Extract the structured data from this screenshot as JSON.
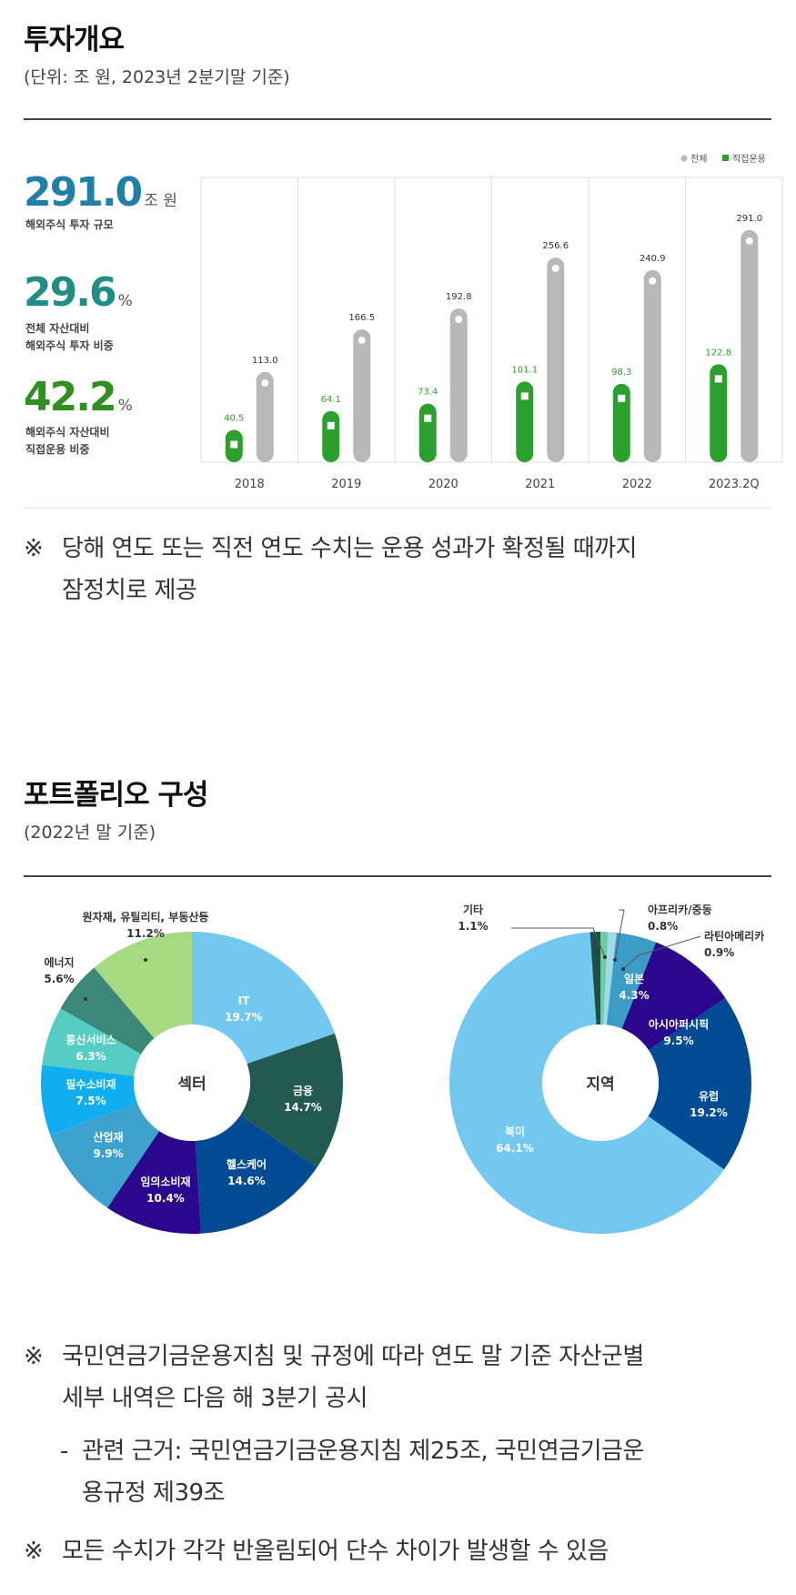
{
  "overview": {
    "title": "투자개요",
    "subtitle": "(단위: 조 원, 2023년 2분기말 기준)",
    "kpis": [
      {
        "value": "291.0",
        "unit": "조 원",
        "label_lines": [
          "해외주식 투자 규모"
        ],
        "color": "#1f7fa8"
      },
      {
        "value": "29.6",
        "unit": "%",
        "label_lines": [
          "전체 자산대비",
          "해외주식 투자 비중"
        ],
        "color": "#1f8f86"
      },
      {
        "value": "42.2",
        "unit": "%",
        "label_lines": [
          "해외주식 자산대비",
          "직접운용 비중"
        ],
        "color": "#2f8f1f"
      }
    ],
    "note": [
      "당해 연도 또는 직전 연도 수치는 운용 성과가 확정될 때까지",
      "잠정치로 제공"
    ],
    "note_mark": "※"
  },
  "chart_data": [
    {
      "type": "bar",
      "categories": [
        "2018",
        "2019",
        "2020",
        "2021",
        "2022",
        "2023.2Q"
      ],
      "series": [
        {
          "name": "전체",
          "values": [
            113.0,
            166.5,
            192.8,
            256.6,
            240.9,
            291.0
          ],
          "color": "#b8b8b8"
        },
        {
          "name": "직접운용",
          "values": [
            40.5,
            64.1,
            73.4,
            101.1,
            98.3,
            122.8
          ],
          "color": "#2ca02c"
        }
      ],
      "legend_order": [
        "전체",
        "직접운용"
      ],
      "legend_position": "top-right",
      "ylim": [
        0,
        300
      ],
      "grid": "vertical"
    },
    {
      "type": "pie",
      "center_label": "섹터",
      "slices": [
        {
          "label": "IT",
          "value": 19.7,
          "color": "#73c8ef",
          "text_color": "#ffffff"
        },
        {
          "label": "금융",
          "value": 14.7,
          "color": "#225a52",
          "text_color": "#ffffff"
        },
        {
          "label": "헬스케어",
          "value": 14.6,
          "color": "#004b93",
          "text_color": "#ffffff"
        },
        {
          "label": "임의소비재",
          "value": 10.4,
          "color": "#2a078c",
          "text_color": "#ffffff"
        },
        {
          "label": "산업재",
          "value": 9.9,
          "color": "#3ea2cf",
          "text_color": "#ffffff"
        },
        {
          "label": "필수소비재",
          "value": 7.5,
          "color": "#0eaef0",
          "text_color": "#ffffff"
        },
        {
          "label": "통신서비스",
          "value": 6.3,
          "color": "#55cdc5",
          "text_color": "#ffffff"
        },
        {
          "label": "에너지",
          "value": 5.6,
          "color": "#3b8878",
          "text_color": "#333333"
        },
        {
          "label": "원자재, 유틸리티, 부동산등",
          "value": 11.2,
          "color": "#a6da80",
          "text_color": "#333333"
        }
      ]
    },
    {
      "type": "pie",
      "center_label": "지역",
      "slices": [
        {
          "label": "아프리카/중동",
          "value": 0.8,
          "color": "#6fcaa6",
          "text_color": "#333333"
        },
        {
          "label": "라틴아메리카",
          "value": 0.9,
          "color": "#9fd9ec",
          "text_color": "#333333"
        },
        {
          "label": "일본",
          "value": 4.3,
          "color": "#3b9dc6",
          "text_color": "#ffffff"
        },
        {
          "label": "아시아퍼시픽",
          "value": 9.5,
          "color": "#2a078c",
          "text_color": "#ffffff"
        },
        {
          "label": "유럽",
          "value": 19.2,
          "color": "#004b93",
          "text_color": "#ffffff"
        },
        {
          "label": "북미",
          "value": 64.1,
          "color": "#73c8ef",
          "text_color": "#ffffff"
        },
        {
          "label": "기타",
          "value": 1.1,
          "color": "#1f4f46",
          "text_color": "#333333"
        }
      ]
    }
  ],
  "portfolio": {
    "title": "포트폴리오 구성",
    "subtitle": "(2022년 말 기준)",
    "notes": [
      {
        "mark": "※",
        "lines": [
          "국민연금기금운용지침 및 규정에 따라 연도 말 기준 자산군별",
          "세부 내역은 다음 해 3분기 공시"
        ]
      },
      {
        "mark": "※",
        "lines": [
          "모든 수치가 각각 반올림되어 단수 차이가 발생할 수 있음"
        ]
      }
    ],
    "subnote": {
      "dash": "-",
      "lines": [
        "관련 근거: 국민연금기금운용지침 제25조, 국민연금기금운",
        "용규정 제39조"
      ]
    }
  }
}
